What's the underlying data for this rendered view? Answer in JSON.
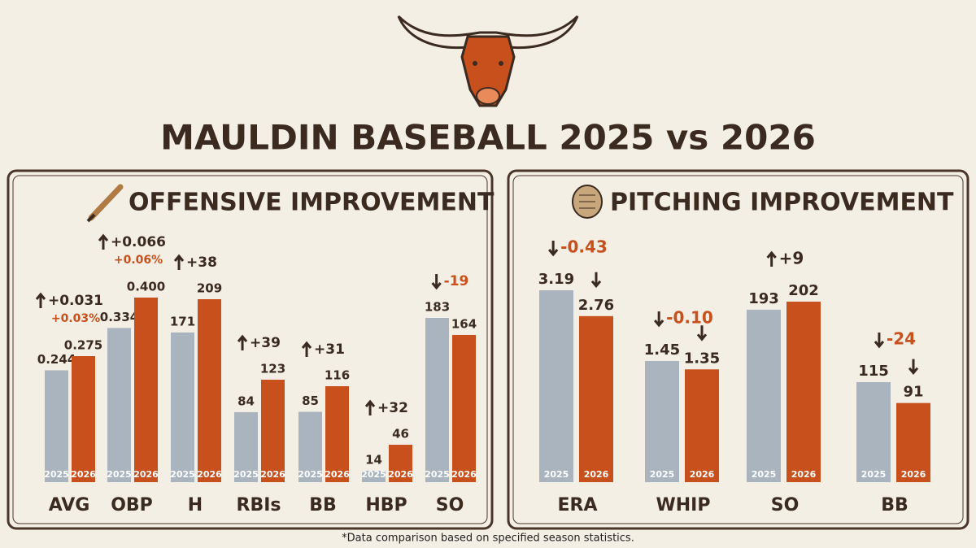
{
  "title": "MAULDIN BASEBALL 2025 vs 2026",
  "footnote": "*Data comparison based on specified season statistics.",
  "chart_data": [
    {
      "type": "bar",
      "title": "OFFENSIVE IMPROVEMENT",
      "categories": [
        "AVG",
        "OBP",
        "H",
        "RBIs",
        "BB",
        "HBP",
        "SO"
      ],
      "series": [
        {
          "name": "2025",
          "color": "#a9b4bf",
          "values": [
            0.244,
            0.334,
            171,
            84,
            85,
            14,
            183
          ],
          "value_labels": [
            "0.244",
            "0.334",
            "171",
            "84",
            "85",
            "14",
            "183"
          ]
        },
        {
          "name": "2026",
          "color": "#c8501d",
          "values": [
            0.275,
            0.4,
            209,
            123,
            116,
            46,
            164
          ],
          "value_labels": [
            "0.275",
            "0.400",
            "209",
            "123",
            "116",
            "46",
            "164"
          ]
        }
      ],
      "change_labels": [
        "+0.031",
        "+0.066",
        "+38",
        "+39",
        "+31",
        "+32",
        "-19"
      ],
      "percent_labels": [
        "+0.03%",
        "+0.06%",
        null,
        null,
        null,
        null,
        null
      ]
    },
    {
      "type": "bar",
      "title": "PITCHING IMPROVEMENT",
      "categories": [
        "ERA",
        "WHIP",
        "SO",
        "BB"
      ],
      "series": [
        {
          "name": "2025",
          "color": "#a9b4bf",
          "values": [
            3.19,
            1.45,
            193,
            115
          ]
        },
        {
          "name": "2026",
          "color": "#c8501d",
          "values": [
            2.76,
            1.35,
            202,
            91
          ]
        }
      ],
      "change_labels": [
        "-0.43",
        "-0.10",
        "+9",
        "-24"
      ]
    }
  ]
}
